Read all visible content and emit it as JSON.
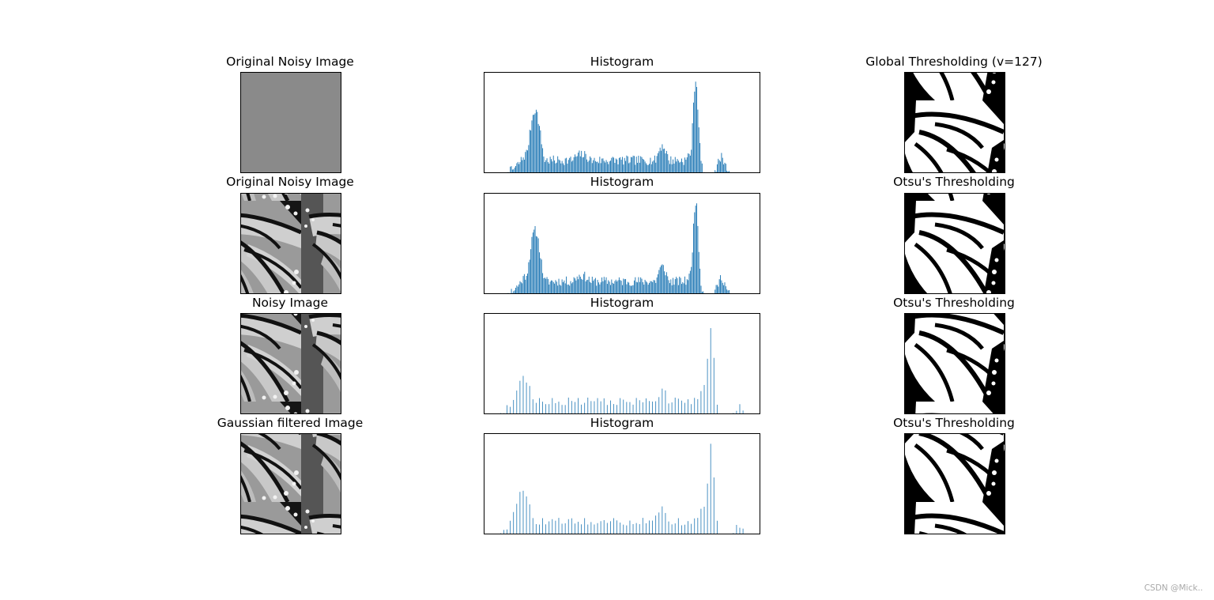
{
  "figure": {
    "watermark": "CSDN @Mick.."
  },
  "rows": [
    {
      "image_title": "Original Noisy Image",
      "histogram_title": "Histogram",
      "threshold_title": "Global Thresholding (v=127)"
    },
    {
      "image_title": "Original Noisy Image",
      "histogram_title": "Histogram",
      "threshold_title": "Otsu's Thresholding"
    },
    {
      "image_title": "Noisy Image",
      "histogram_title": "Histogram",
      "threshold_title": "Otsu's Thresholding"
    },
    {
      "image_title": "Gaussian filtered Image",
      "histogram_title": "Histogram",
      "threshold_title": "Otsu's Thresholding"
    }
  ],
  "colors": {
    "bar": "#1f77b4",
    "frame": "#000000",
    "watermark": "#a8a8a8"
  },
  "chart_data": [
    {
      "type": "bar",
      "title": "Histogram",
      "xlim": [
        0,
        256
      ],
      "ylim": [
        0,
        1.05
      ],
      "axis_ticks": "hidden",
      "bin_width": 0.7,
      "profile": {
        "bins_from": 15,
        "bins_to": 241,
        "peaks": [
          {
            "center": 47,
            "height": 0.66,
            "width": 5
          },
          {
            "center": 44,
            "height": 0.24,
            "width": 9
          },
          {
            "center": 90,
            "height": 0.19,
            "width": 10
          },
          {
            "center": 165,
            "height": 0.28,
            "width": 5
          },
          {
            "center": 196,
            "height": 0.97,
            "width": 2.5
          },
          {
            "center": 191,
            "height": 0.2,
            "width": 4
          },
          {
            "center": 220,
            "height": 0.17,
            "width": 3
          }
        ],
        "plateau": {
          "from": 35,
          "to": 200,
          "height": 0.13
        },
        "noise_amp": 0.05,
        "seed": 7
      }
    },
    {
      "type": "bar",
      "title": "Histogram",
      "xlim": [
        0,
        256
      ],
      "ylim": [
        0,
        1.05
      ],
      "axis_ticks": "hidden",
      "bin_width": 0.7,
      "profile": {
        "bins_from": 15,
        "bins_to": 241,
        "peaks": [
          {
            "center": 47,
            "height": 0.66,
            "width": 5
          },
          {
            "center": 44,
            "height": 0.24,
            "width": 9
          },
          {
            "center": 90,
            "height": 0.19,
            "width": 10
          },
          {
            "center": 165,
            "height": 0.28,
            "width": 5
          },
          {
            "center": 196,
            "height": 0.97,
            "width": 2.5
          },
          {
            "center": 191,
            "height": 0.2,
            "width": 4
          },
          {
            "center": 220,
            "height": 0.17,
            "width": 3
          }
        ],
        "plateau": {
          "from": 35,
          "to": 200,
          "height": 0.13
        },
        "noise_amp": 0.05,
        "seed": 11
      }
    },
    {
      "type": "bar",
      "title": "Histogram",
      "xlim": [
        0,
        256
      ],
      "ylim": [
        0,
        1.05
      ],
      "axis_ticks": "hidden",
      "bin_width": 0.55,
      "bin_step": 3,
      "profile": {
        "bins_from": 12,
        "bins_to": 244,
        "peaks": [
          {
            "center": 36,
            "height": 0.38,
            "width": 7
          },
          {
            "center": 33,
            "height": 0.16,
            "width": 10
          },
          {
            "center": 90,
            "height": 0.1,
            "width": 10
          },
          {
            "center": 165,
            "height": 0.24,
            "width": 6
          },
          {
            "center": 210,
            "height": 0.92,
            "width": 3
          },
          {
            "center": 204,
            "height": 0.3,
            "width": 4
          },
          {
            "center": 238,
            "height": 0.14,
            "width": 3
          }
        ],
        "plateau": {
          "from": 30,
          "to": 215,
          "height": 0.13
        },
        "noise_amp": 0.04,
        "seed": 23
      }
    },
    {
      "type": "bar",
      "title": "Histogram",
      "xlim": [
        0,
        256
      ],
      "ylim": [
        0,
        1.05
      ],
      "axis_ticks": "hidden",
      "bin_width": 0.55,
      "bin_step": 3,
      "profile": {
        "bins_from": 12,
        "bins_to": 244,
        "peaks": [
          {
            "center": 36,
            "height": 0.44,
            "width": 7
          },
          {
            "center": 33,
            "height": 0.16,
            "width": 10
          },
          {
            "center": 90,
            "height": 0.1,
            "width": 10
          },
          {
            "center": 165,
            "height": 0.28,
            "width": 6
          },
          {
            "center": 210,
            "height": 0.92,
            "width": 3
          },
          {
            "center": 204,
            "height": 0.3,
            "width": 4
          },
          {
            "center": 238,
            "height": 0.15,
            "width": 3
          }
        ],
        "plateau": {
          "from": 30,
          "to": 215,
          "height": 0.13
        },
        "noise_amp": 0.04,
        "seed": 31
      }
    }
  ]
}
